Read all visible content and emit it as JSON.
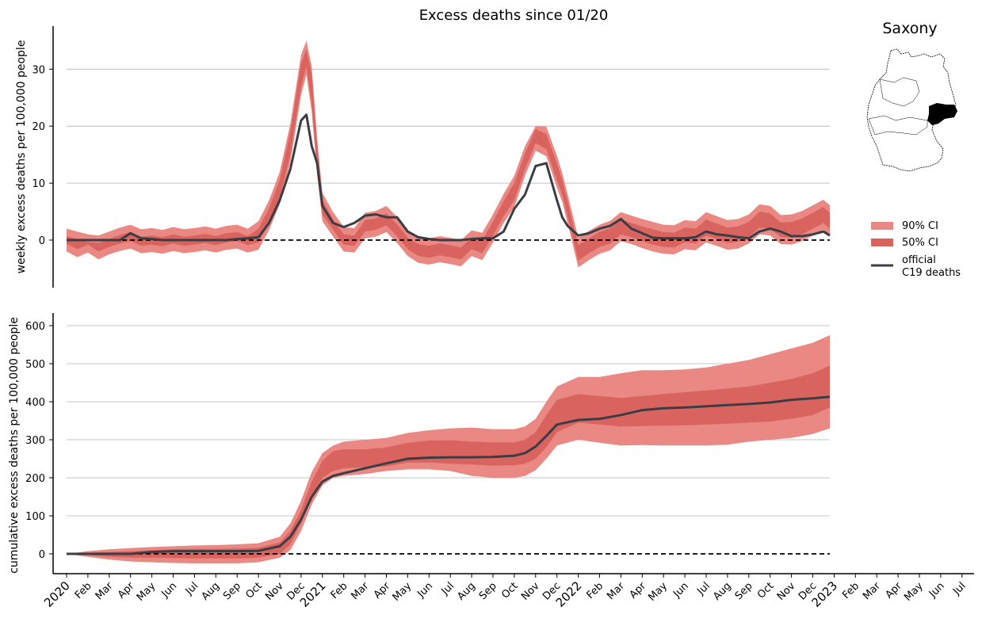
{
  "title": "Excess deaths since 01/20",
  "region": "Saxony",
  "colors": {
    "ci90": "#ea8883",
    "ci50": "#d9645f",
    "official": "#3b3d44",
    "zero_line": "#000000",
    "grid": "#b0b0b0"
  },
  "legend": {
    "placement": "right",
    "items": [
      {
        "label": "90% CI",
        "type": "band",
        "color": "#ea8883"
      },
      {
        "label": "50% CI",
        "type": "band",
        "color": "#d9645f"
      },
      {
        "label_line1": "official",
        "label_line2": "C19 deaths",
        "type": "line",
        "color": "#3b3d44"
      }
    ]
  },
  "x_ticks": [
    {
      "label": "2020",
      "year": true
    },
    {
      "label": "Feb"
    },
    {
      "label": "Mar"
    },
    {
      "label": "Apr"
    },
    {
      "label": "May"
    },
    {
      "label": "Jun"
    },
    {
      "label": "Jul"
    },
    {
      "label": "Aug"
    },
    {
      "label": "Sep"
    },
    {
      "label": "Oct"
    },
    {
      "label": "Nov"
    },
    {
      "label": "Dec"
    },
    {
      "label": "2021",
      "year": true
    },
    {
      "label": "Feb"
    },
    {
      "label": "Mar"
    },
    {
      "label": "Apr"
    },
    {
      "label": "May"
    },
    {
      "label": "Jun"
    },
    {
      "label": "Jul"
    },
    {
      "label": "Aug"
    },
    {
      "label": "Sep"
    },
    {
      "label": "Oct"
    },
    {
      "label": "Nov"
    },
    {
      "label": "Dec"
    },
    {
      "label": "2022",
      "year": true
    },
    {
      "label": "Feb"
    },
    {
      "label": "Mar"
    },
    {
      "label": "Apr"
    },
    {
      "label": "May"
    },
    {
      "label": "Jun"
    },
    {
      "label": "Jul"
    },
    {
      "label": "Aug"
    },
    {
      "label": "Sep"
    },
    {
      "label": "Oct"
    },
    {
      "label": "Nov"
    },
    {
      "label": "Dec"
    },
    {
      "label": "2023",
      "year": true
    },
    {
      "label": "Feb"
    },
    {
      "label": "Mar"
    },
    {
      "label": "Apr"
    },
    {
      "label": "May"
    },
    {
      "label": "Jun"
    },
    {
      "label": "Jul"
    }
  ],
  "chart_data": [
    {
      "type": "line",
      "ylabel": "weekly excess deaths per 100,000 people",
      "ylim": [
        -8,
        38
      ],
      "yticks": [
        "0",
        "10",
        "20",
        "30"
      ],
      "grid": true,
      "x_unit": "months since Jan 2020",
      "x": [
        0,
        0.5,
        1,
        1.5,
        2,
        2.5,
        3,
        3.5,
        4,
        4.5,
        5,
        5.5,
        6,
        6.5,
        7,
        7.5,
        8,
        8.5,
        9,
        9.5,
        10,
        10.5,
        11,
        11.25,
        11.5,
        11.75,
        12,
        12.5,
        13,
        13.5,
        14,
        14.5,
        15,
        15.5,
        16,
        16.5,
        17,
        17.5,
        18,
        18.5,
        19,
        19.5,
        20,
        20.5,
        21,
        21.5,
        22,
        22.5,
        23,
        23.25,
        23.5,
        24,
        24.5,
        25,
        25.5,
        26,
        26.5,
        27,
        27.5,
        28,
        28.5,
        29,
        29.5,
        30,
        30.5,
        31,
        31.5,
        32,
        32.5,
        33,
        33.5,
        34,
        34.5,
        35,
        35.5,
        35.8
      ],
      "series": [
        {
          "name": "official C19 deaths",
          "values": [
            0,
            0,
            0,
            0,
            0,
            0,
            1.2,
            0.3,
            0.2,
            0,
            0,
            0,
            0,
            0,
            0,
            0,
            0.2,
            0.3,
            0.5,
            3,
            7,
            12.5,
            21,
            22,
            16.5,
            13.5,
            6,
            3,
            2.3,
            3,
            4.3,
            4.5,
            4,
            4,
            1.5,
            0.5,
            0.2,
            0,
            0,
            0,
            0.2,
            0.3,
            0.3,
            1.5,
            5.5,
            8,
            13,
            13.5,
            7,
            4,
            2.5,
            0.8,
            1.2,
            2,
            2.5,
            3.7,
            2,
            1.2,
            0.4,
            0.3,
            0.3,
            0.3,
            0.5,
            1.5,
            1,
            0.8,
            0.5,
            0.3,
            1.5,
            2,
            1.5,
            0.7,
            0.7,
            1,
            1.5,
            0.8
          ]
        },
        {
          "name": "50% CI low",
          "values": [
            -0.7,
            -1.6,
            -0.8,
            -2,
            -1.2,
            -0.6,
            -0.2,
            -1,
            -0.8,
            -1.1,
            -0.6,
            -1,
            -0.8,
            -0.5,
            -0.9,
            -0.4,
            -0.2,
            -0.9,
            -0.4,
            3,
            7.5,
            15,
            27,
            30.5,
            24,
            13,
            4.5,
            1.8,
            -0.8,
            -1,
            1.5,
            1.8,
            2.6,
            0.7,
            -1.6,
            -2.8,
            -3.1,
            -2.7,
            -3,
            -3.4,
            -1.6,
            -2.3,
            0.8,
            4.2,
            7,
            12.5,
            17,
            16,
            10.5,
            8,
            4.2,
            -3.6,
            -2.3,
            -1.2,
            -0.6,
            1,
            0.5,
            -0.2,
            -0.8,
            -1.2,
            -1.3,
            -0.4,
            -0.6,
            0.8,
            0.2,
            -0.5,
            -0.3,
            0.6,
            2.2,
            2,
            0.5,
            0.4,
            1,
            2,
            3,
            2
          ]
        },
        {
          "name": "50% CI high",
          "values": [
            0.7,
            0.2,
            -0.3,
            -0.5,
            0.2,
            0.9,
            1.4,
            0.6,
            0.8,
            0.5,
            1,
            0.6,
            0.8,
            1.1,
            0.7,
            1.2,
            1.4,
            0.7,
            2,
            5.6,
            10.6,
            19,
            31,
            33.5,
            29,
            16.5,
            7,
            3.6,
            1,
            0.8,
            3.5,
            3.8,
            4.7,
            2.8,
            0.4,
            -0.7,
            -1,
            -0.6,
            -0.9,
            -1.3,
            0.4,
            0,
            3.2,
            6.8,
            10,
            15.2,
            19.5,
            18.6,
            13.5,
            10.5,
            6.8,
            -0.9,
            0.3,
            1.4,
            2.1,
            3.6,
            3,
            2.4,
            1.9,
            1.4,
            1.3,
            2.2,
            2,
            3.6,
            2.9,
            2.2,
            2.4,
            3.2,
            5,
            4.7,
            3.1,
            3.2,
            3.8,
            4.8,
            5.8,
            4.8
          ]
        },
        {
          "name": "90% CI low",
          "values": [
            -2,
            -3,
            -2.2,
            -3.4,
            -2.5,
            -1.9,
            -1.5,
            -2.3,
            -2.1,
            -2.4,
            -1.9,
            -2.3,
            -2.1,
            -1.8,
            -2.2,
            -1.7,
            -1.5,
            -2.2,
            -1.7,
            1.8,
            6.3,
            13.7,
            25.5,
            29,
            22.5,
            11.5,
            3.3,
            0.6,
            -2,
            -2.2,
            0.3,
            0.6,
            1.4,
            -0.5,
            -2.8,
            -4,
            -4.3,
            -3.9,
            -4.2,
            -4.6,
            -2.8,
            -3.5,
            -0.4,
            3,
            5.8,
            11.3,
            15.7,
            14.7,
            9.2,
            6.7,
            3,
            -4.8,
            -3.5,
            -2.4,
            -1.8,
            -0.2,
            -0.7,
            -1.4,
            -2,
            -2.4,
            -2.5,
            -1.6,
            -1.8,
            -0.4,
            -1,
            -1.7,
            -1.5,
            -0.6,
            1,
            0.8,
            -0.7,
            -0.8,
            -0.2,
            0.8,
            1.8,
            0.8
          ]
        },
        {
          "name": "90% CI high",
          "values": [
            2,
            1.5,
            1,
            0.8,
            1.5,
            2.2,
            2.7,
            1.9,
            2.1,
            1.8,
            2.3,
            1.9,
            2.1,
            2.4,
            2,
            2.5,
            2.7,
            2,
            3.3,
            7,
            12,
            20.5,
            32.5,
            35,
            30.5,
            18,
            8.3,
            4.9,
            2.3,
            2.1,
            4.8,
            5.1,
            6,
            4.1,
            1.7,
            0.6,
            0.3,
            0.7,
            0.4,
            0,
            1.7,
            1.3,
            4.5,
            8.1,
            11.3,
            16.5,
            20,
            19.9,
            14.8,
            11.8,
            8.1,
            0.4,
            1.6,
            2.7,
            3.4,
            4.9,
            4.3,
            3.7,
            3.2,
            2.7,
            2.6,
            3.5,
            3.3,
            4.9,
            4.2,
            3.5,
            3.7,
            4.5,
            6.3,
            6,
            4.4,
            4.5,
            5.1,
            6.1,
            7.1,
            6.1
          ]
        }
      ]
    },
    {
      "type": "line",
      "ylabel": "cumulative excess deaths per 100,000 people",
      "ylim": [
        -55,
        635
      ],
      "yticks": [
        "0",
        "100",
        "200",
        "300",
        "400",
        "500",
        "600"
      ],
      "grid": true,
      "x_unit": "months since Jan 2020",
      "x": [
        0,
        1,
        2,
        3,
        4,
        5,
        6,
        7,
        8,
        9,
        10,
        10.5,
        11,
        11.5,
        12,
        12.5,
        13,
        14,
        15,
        16,
        17,
        18,
        19,
        20,
        21,
        21.5,
        22,
        22.5,
        23,
        24,
        25,
        26,
        27,
        28,
        29,
        30,
        31,
        32,
        33,
        34,
        35,
        35.8
      ],
      "series": [
        {
          "name": "official C19 deaths",
          "values": [
            0,
            0,
            0,
            0,
            5,
            7,
            7,
            7,
            7,
            8,
            20,
            45,
            90,
            150,
            190,
            205,
            212,
            225,
            238,
            250,
            253,
            254,
            254,
            255,
            258,
            265,
            282,
            310,
            340,
            352,
            355,
            365,
            378,
            383,
            385,
            388,
            391,
            394,
            398,
            405,
            409,
            413
          ]
        },
        {
          "name": "50% CI low",
          "values": [
            0,
            -3,
            -8,
            -10,
            -10,
            -11,
            -12,
            -12,
            -12,
            -10,
            0,
            25,
            80,
            150,
            200,
            218,
            225,
            228,
            230,
            240,
            240,
            237,
            235,
            232,
            233,
            237,
            250,
            280,
            320,
            345,
            340,
            335,
            336,
            337,
            338,
            340,
            342,
            345,
            348,
            355,
            365,
            385
          ]
        },
        {
          "name": "50% CI high",
          "values": [
            0,
            3,
            5,
            7,
            10,
            12,
            13,
            13,
            14,
            16,
            30,
            60,
            115,
            190,
            245,
            270,
            275,
            275,
            280,
            292,
            298,
            299,
            295,
            293,
            293,
            300,
            320,
            365,
            405,
            420,
            415,
            410,
            415,
            420,
            425,
            430,
            435,
            440,
            450,
            460,
            475,
            495
          ]
        },
        {
          "name": "90% CI low",
          "values": [
            0,
            -8,
            -15,
            -20,
            -22,
            -24,
            -25,
            -25,
            -25,
            -22,
            -10,
            10,
            60,
            130,
            180,
            200,
            205,
            210,
            218,
            222,
            222,
            218,
            205,
            200,
            200,
            205,
            220,
            250,
            285,
            300,
            292,
            285,
            286,
            285,
            285,
            285,
            287,
            295,
            300,
            305,
            315,
            330
          ]
        },
        {
          "name": "90% CI high",
          "values": [
            0,
            7,
            12,
            15,
            18,
            20,
            22,
            23,
            25,
            28,
            45,
            80,
            140,
            215,
            265,
            285,
            295,
            300,
            305,
            318,
            325,
            330,
            332,
            328,
            328,
            335,
            355,
            400,
            440,
            465,
            465,
            475,
            483,
            483,
            485,
            490,
            500,
            510,
            525,
            540,
            555,
            575
          ]
        }
      ]
    }
  ]
}
